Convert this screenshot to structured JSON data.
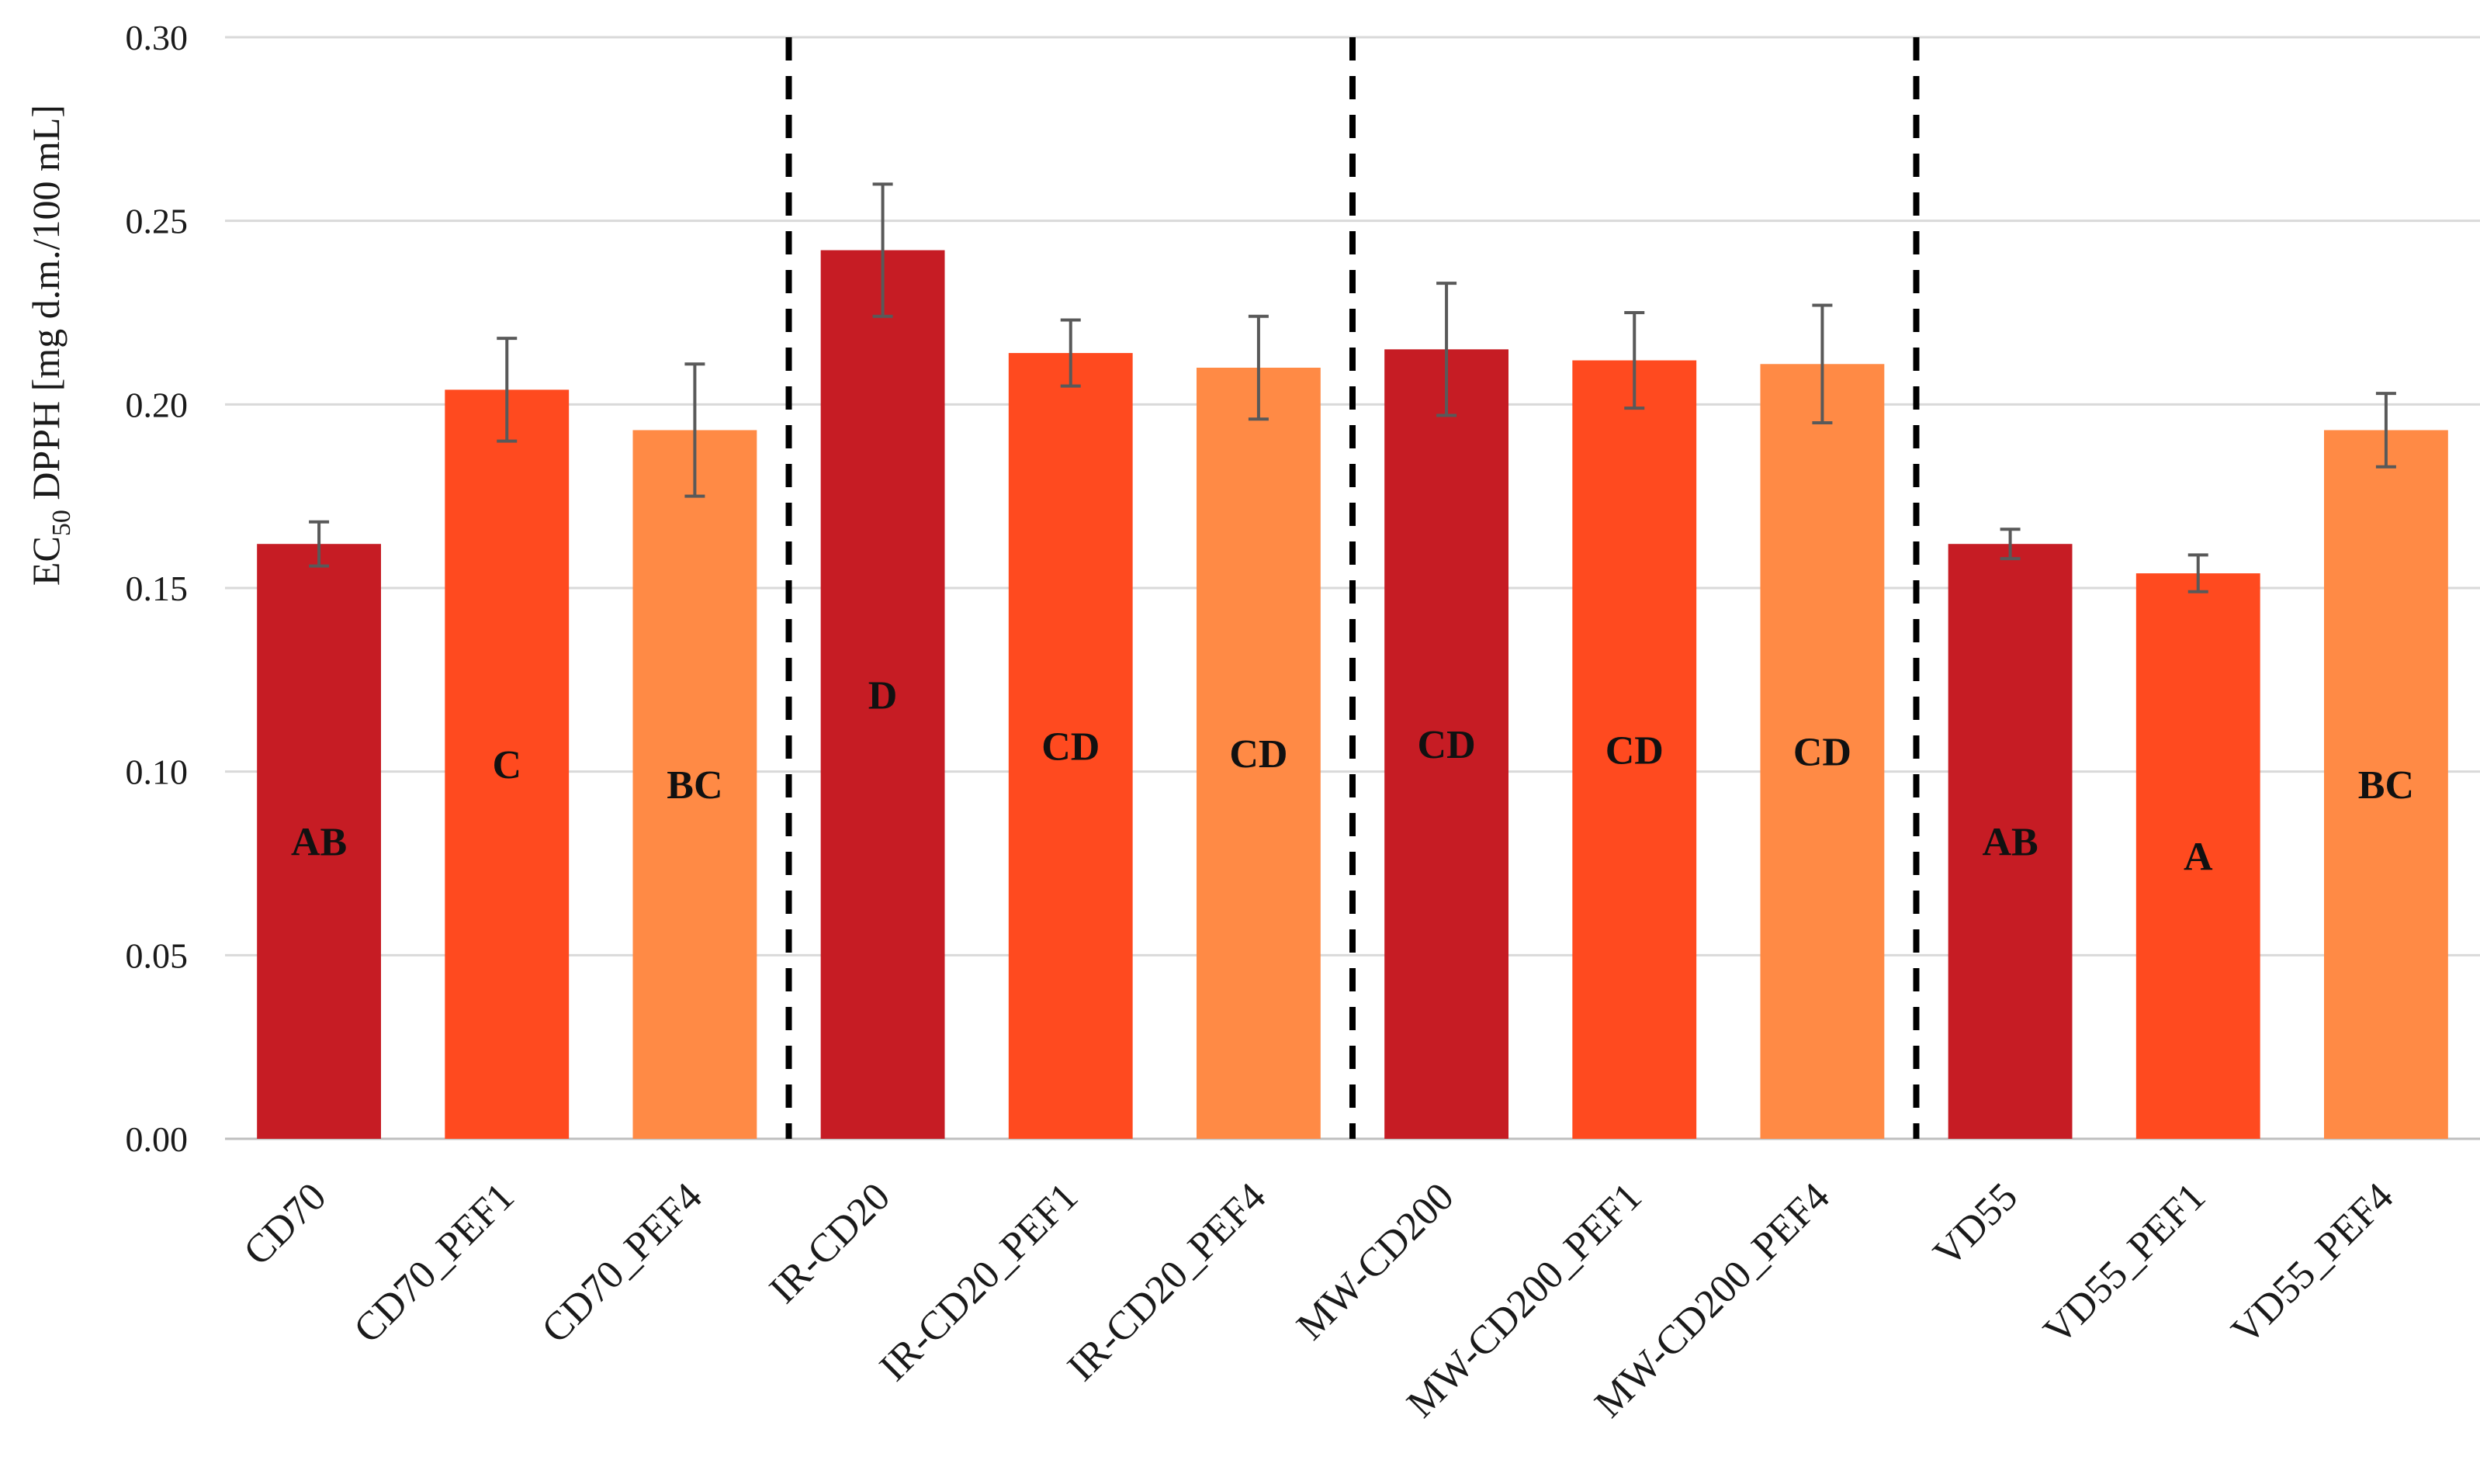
{
  "chart_data": {
    "type": "bar",
    "ylabel_main": "EC",
    "ylabel_sub": "50",
    "ylabel_rest": " DPPH [mg d.m./100 mL]",
    "ylim": [
      0,
      0.3
    ],
    "ytick_step": 0.05,
    "yticks": [
      "0.00",
      "0.05",
      "0.10",
      "0.15",
      "0.20",
      "0.25",
      "0.30"
    ],
    "grid": true,
    "categories": [
      "CD70",
      "CD70_PEF1",
      "CD70_PEF4",
      "IR-CD20",
      "IR-CD20_PEF1",
      "IR-CD20_PEF4",
      "MW-CD200",
      "MW-CD200_PEF1",
      "MW-CD200_PEF4",
      "VD55",
      "VD55_PEF1",
      "VD55_PEF4"
    ],
    "values": [
      0.162,
      0.204,
      0.193,
      0.242,
      0.214,
      0.21,
      0.215,
      0.212,
      0.211,
      0.162,
      0.154,
      0.193
    ],
    "errors": [
      0.006,
      0.014,
      0.018,
      0.018,
      0.009,
      0.014,
      0.018,
      0.013,
      0.016,
      0.004,
      0.005,
      0.01
    ],
    "significance": [
      "AB",
      "C",
      "BC",
      "D",
      "CD",
      "CD",
      "CD",
      "CD",
      "CD",
      "AB",
      "A",
      "BC"
    ],
    "bar_colors": [
      "#c61c24",
      "#ff4a1f",
      "#ff8a45",
      "#c61c24",
      "#ff4a1f",
      "#ff8a45",
      "#c61c24",
      "#ff4a1f",
      "#ff8a45",
      "#c61c24",
      "#ff4a1f",
      "#ff8a45"
    ],
    "group_dividers_after": [
      2,
      5,
      8
    ]
  }
}
